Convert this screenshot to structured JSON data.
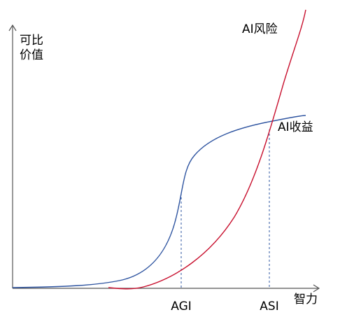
{
  "axes": {
    "y_label": [
      "可比",
      "价值"
    ],
    "x_label": "智力"
  },
  "markers": [
    "AGI",
    "ASI"
  ],
  "curves": {
    "risk": "AI风险",
    "benefit": "AI收益"
  }
}
